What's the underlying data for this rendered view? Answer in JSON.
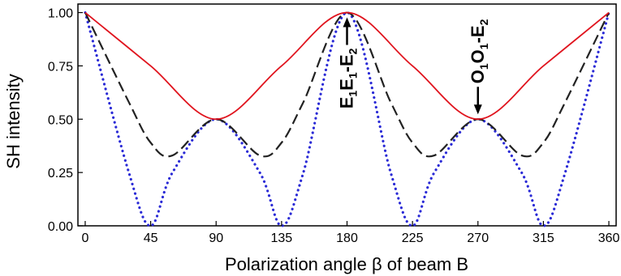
{
  "chart_data": {
    "type": "line",
    "xlabel": "Polarization angle β of beam B",
    "ylabel": "SH intensity",
    "xlim": [
      -5,
      365
    ],
    "ylim": [
      0,
      1.04
    ],
    "x_ticks": [
      0,
      45,
      90,
      135,
      180,
      225,
      270,
      315,
      360
    ],
    "x_tick_labels": [
      "0",
      "45",
      "90",
      "135",
      "180",
      "225",
      "270",
      "315",
      "360"
    ],
    "y_ticks": [
      0,
      0.25,
      0.5,
      0.75,
      1.0
    ],
    "y_tick_labels": [
      "0.00",
      "0.25",
      "0.50",
      "0.75",
      "1.00"
    ],
    "grid": false,
    "series": [
      {
        "color": "#e0141e",
        "style": "solid",
        "x": [
          0,
          45,
          90,
          135,
          180,
          225,
          270,
          315,
          360
        ],
        "y": [
          1.0,
          0.75,
          0.5,
          0.75,
          1.0,
          0.75,
          0.5,
          0.75,
          1.0
        ]
      },
      {
        "color": "#222222",
        "style": "dashed",
        "x": [
          0,
          30,
          45,
          60,
          90,
          120,
          135,
          150,
          180,
          210,
          225,
          240,
          270,
          300,
          315,
          330,
          360
        ],
        "y": [
          1.0,
          0.58,
          0.39,
          0.33,
          0.5,
          0.33,
          0.39,
          0.58,
          1.0,
          0.58,
          0.39,
          0.33,
          0.5,
          0.33,
          0.39,
          0.58,
          1.0
        ]
      },
      {
        "color": "#2a2ad6",
        "style": "dotted",
        "x": [
          0,
          30,
          45,
          60,
          90,
          120,
          135,
          150,
          180,
          210,
          225,
          240,
          270,
          300,
          315,
          330,
          360
        ],
        "y": [
          1.0,
          0.25,
          0.0,
          0.25,
          0.5,
          0.25,
          0.0,
          0.25,
          1.0,
          0.25,
          0.0,
          0.25,
          0.5,
          0.25,
          0.0,
          0.25,
          1.0
        ]
      }
    ],
    "annotations": [
      {
        "main": "E",
        "parts": [
          "E",
          "1",
          "E",
          "1",
          "-E",
          "2"
        ],
        "x": 180,
        "y": 1.0,
        "direction": "up"
      },
      {
        "main": "O",
        "parts": [
          "O",
          "1",
          "O",
          "1",
          "-E",
          "2"
        ],
        "x": 270,
        "y": 0.5,
        "direction": "down"
      }
    ]
  }
}
